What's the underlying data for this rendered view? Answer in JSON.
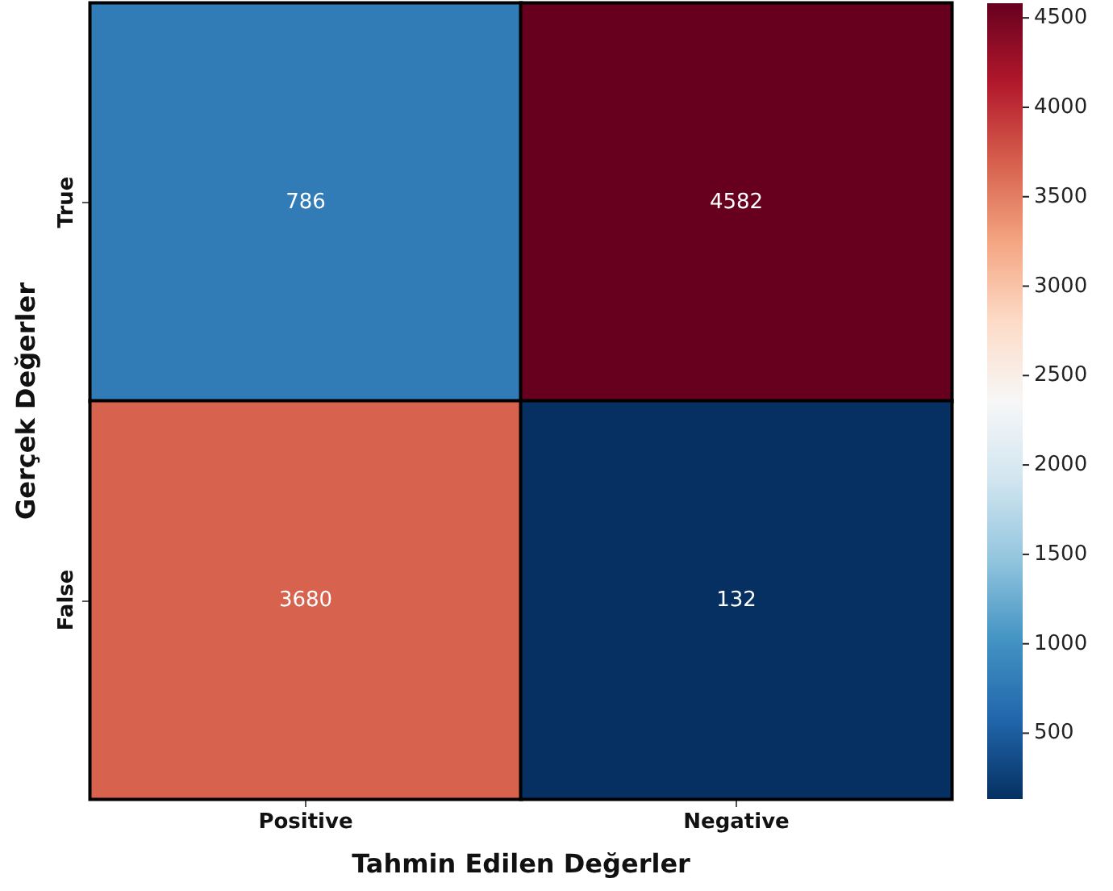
{
  "chart_data": {
    "type": "heatmap",
    "xlabel": "Tahmin Edilen Değerler",
    "ylabel": "Gerçek Değerler",
    "categories": [
      "Positive",
      "Negative"
    ],
    "y_categories": [
      "True",
      "False"
    ],
    "cells": [
      [
        786,
        4582
      ],
      [
        3680,
        132
      ]
    ],
    "data_labels": true,
    "clim": [
      132,
      4582
    ],
    "cticks": [
      500,
      1000,
      1500,
      2000,
      2500,
      3000,
      3500,
      4000,
      4500
    ]
  }
}
